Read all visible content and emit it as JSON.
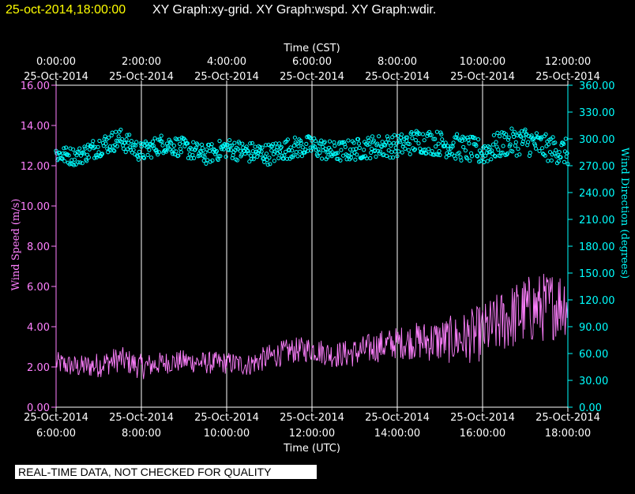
{
  "header": {
    "timestamp": "25-oct-2014,18:00:00",
    "graphs": "XY Graph:xy-grid.  XY Graph:wspd.  XY Graph:wdir."
  },
  "disclaimer": "REAL-TIME DATA, NOT CHECKED FOR QUALITY",
  "colors": {
    "speed": "#ff80ff",
    "direction": "#00ffff",
    "grid": "#ffffff",
    "header_time": "#ffff00"
  },
  "chart_data": {
    "type": "line",
    "top_axis": {
      "title": "Time (CST)",
      "ticks": [
        {
          "hour": 6,
          "line1": "0:00:00",
          "line2": "25-Oct-2014"
        },
        {
          "hour": 8,
          "line1": "2:00:00",
          "line2": "25-Oct-2014"
        },
        {
          "hour": 10,
          "line1": "4:00:00",
          "line2": "25-Oct-2014"
        },
        {
          "hour": 12,
          "line1": "6:00:00",
          "line2": "25-Oct-2014"
        },
        {
          "hour": 14,
          "line1": "8:00:00",
          "line2": "25-Oct-2014"
        },
        {
          "hour": 16,
          "line1": "10:00:00",
          "line2": "25-Oct-2014"
        },
        {
          "hour": 18,
          "line1": "12:00:00",
          "line2": "25-Oct-2014"
        }
      ]
    },
    "bottom_axis": {
      "title": "Time (UTC)",
      "ticks": [
        {
          "hour": 6,
          "line1": "25-Oct-2014",
          "line2": "6:00:00"
        },
        {
          "hour": 8,
          "line1": "25-Oct-2014",
          "line2": "8:00:00"
        },
        {
          "hour": 10,
          "line1": "25-Oct-2014",
          "line2": "10:00:00"
        },
        {
          "hour": 12,
          "line1": "25-Oct-2014",
          "line2": "12:00:00"
        },
        {
          "hour": 14,
          "line1": "25-Oct-2014",
          "line2": "14:00:00"
        },
        {
          "hour": 16,
          "line1": "25-Oct-2014",
          "line2": "16:00:00"
        },
        {
          "hour": 18,
          "line1": "25-Oct-2014",
          "line2": "18:00:00"
        }
      ]
    },
    "x_range_hours_utc": [
      6,
      18
    ],
    "left_axis": {
      "title": "Wind Speed (m/s)",
      "range": [
        0,
        16
      ],
      "ticks": [
        "0.00",
        "2.00",
        "4.00",
        "6.00",
        "8.00",
        "10.00",
        "12.00",
        "14.00",
        "16.00"
      ]
    },
    "right_axis": {
      "title": "Wind Direction (degrees)",
      "range": [
        0,
        360
      ],
      "ticks": [
        "0.00",
        "30.00",
        "60.00",
        "90.00",
        "120.00",
        "150.00",
        "180.00",
        "210.00",
        "240.00",
        "270.00",
        "300.00",
        "330.00",
        "360.00"
      ]
    },
    "series": [
      {
        "name": "Wind Speed",
        "style": "line",
        "axis": "left",
        "hours": [
          6.0,
          6.5,
          7.0,
          7.5,
          8.0,
          8.5,
          9.0,
          9.5,
          10.0,
          10.5,
          11.0,
          11.5,
          12.0,
          12.5,
          13.0,
          13.5,
          14.0,
          14.5,
          15.0,
          15.5,
          16.0,
          16.5,
          17.0,
          17.5,
          18.0
        ],
        "values": [
          2.2,
          2.0,
          2.1,
          2.4,
          2.0,
          2.2,
          2.3,
          2.2,
          2.2,
          2.1,
          2.5,
          2.8,
          2.9,
          2.6,
          2.7,
          3.0,
          3.2,
          3.3,
          3.3,
          3.4,
          3.7,
          4.3,
          4.8,
          5.0,
          5.3
        ],
        "variability_ms": [
          0.35,
          0.35,
          0.4,
          0.4,
          0.4,
          0.35,
          0.35,
          0.35,
          0.35,
          0.35,
          0.4,
          0.4,
          0.4,
          0.4,
          0.45,
          0.5,
          0.5,
          0.6,
          0.7,
          0.8,
          0.9,
          1.0,
          1.1,
          1.1,
          1.1
        ]
      },
      {
        "name": "Wind Direction",
        "style": "scatter",
        "axis": "right",
        "hours": [
          6.0,
          6.5,
          7.0,
          7.5,
          8.0,
          8.5,
          9.0,
          9.5,
          10.0,
          10.5,
          11.0,
          11.5,
          12.0,
          12.5,
          13.0,
          13.5,
          14.0,
          14.5,
          15.0,
          15.5,
          16.0,
          16.5,
          17.0,
          17.5,
          18.0
        ],
        "values": [
          283,
          280,
          292,
          300,
          285,
          295,
          290,
          282,
          290,
          285,
          283,
          290,
          292,
          285,
          288,
          292,
          292,
          298,
          295,
          290,
          285,
          295,
          298,
          290,
          285
        ],
        "variability_deg": [
          10,
          10,
          12,
          12,
          11,
          11,
          11,
          11,
          11,
          12,
          12,
          12,
          12,
          12,
          12,
          13,
          13,
          14,
          14,
          15,
          15,
          15,
          16,
          15,
          15
        ]
      }
    ]
  }
}
